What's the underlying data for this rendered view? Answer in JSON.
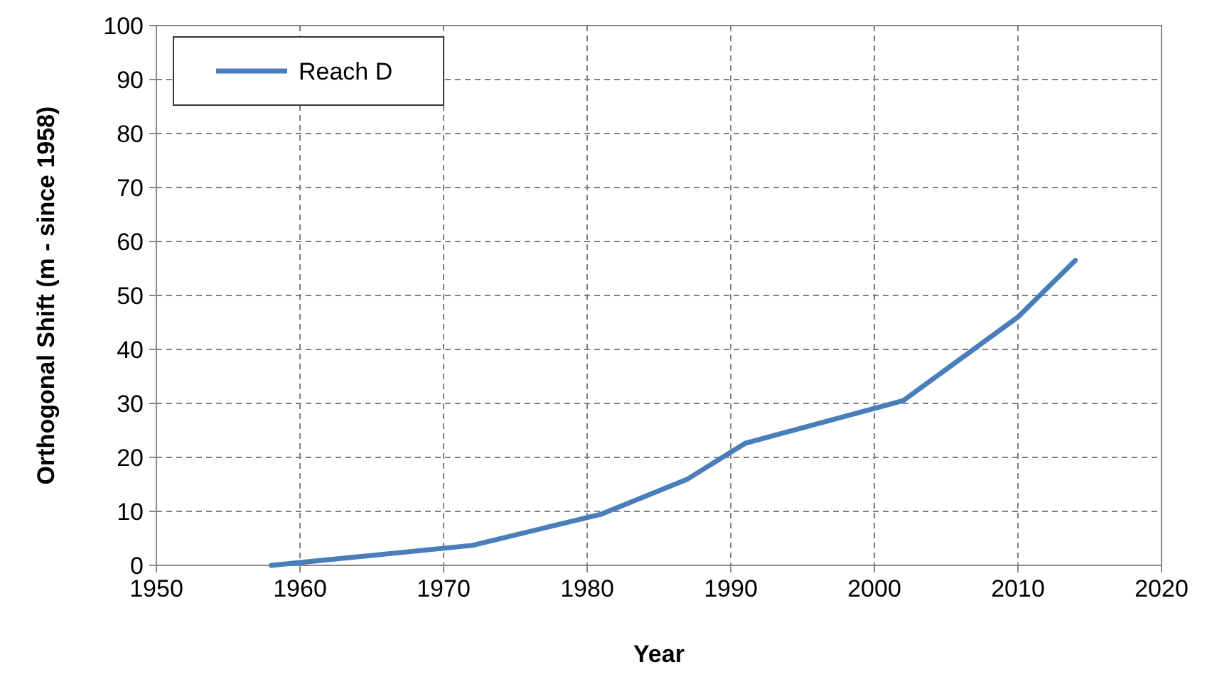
{
  "chart_data": {
    "type": "line",
    "xlabel": "Year",
    "ylabel": "Orthogonal Shift (m - since 1958)",
    "series": [
      {
        "name": "Reach D",
        "color": "#4a7ebb",
        "x": [
          1958,
          1972,
          1981,
          1987,
          1991,
          2002,
          2010,
          2014
        ],
        "values": [
          0,
          3.7,
          9.5,
          16,
          22.6,
          30.5,
          46,
          56.5
        ]
      }
    ],
    "xlim": [
      1950,
      2020
    ],
    "xticks": [
      1950,
      1960,
      1970,
      1980,
      1990,
      2000,
      2010,
      2020
    ],
    "ylim": [
      0,
      100
    ],
    "yticks": [
      0,
      10,
      20,
      30,
      40,
      50,
      60,
      70,
      80,
      90,
      100
    ],
    "grid": true,
    "legend": "top left",
    "marker": "none",
    "line_style": "solid"
  }
}
